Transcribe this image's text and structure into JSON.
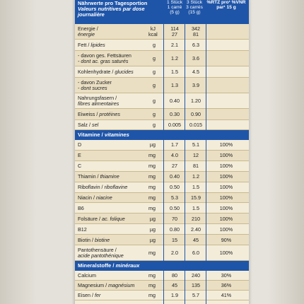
{
  "header": {
    "title_de": "Nährwerte pro Tagesportion",
    "title_fr": "Valeurs nutritives par dose journalière",
    "col1": "1 Stück 1 carré (5 g)",
    "col2": "3 Stück 3 carrés (15 g)",
    "col3": "%RTZ pro¹ %VNR par¹ 15 g"
  },
  "nutrients": [
    {
      "de": "Energie / ",
      "fr": "énergie",
      "unit": "kJ kcal",
      "v1": "114 27",
      "v2": "342 81",
      "v3": ""
    },
    {
      "de": "Fett / ",
      "fr": "lipides",
      "unit": "g",
      "v1": "2.1",
      "v2": "6.3",
      "v3": ""
    },
    {
      "de": "- davon ges. Fettsäuren",
      "fr": "- dont ac. gras saturés",
      "unit": "g",
      "v1": "1.2",
      "v2": "3.6",
      "v3": ""
    },
    {
      "de": "Kohlenhydrate / ",
      "fr": "glucides",
      "unit": "g",
      "v1": "1.5",
      "v2": "4.5",
      "v3": ""
    },
    {
      "de": "- davon Zucker",
      "fr": "- dont sucres",
      "unit": "g",
      "v1": "1.3",
      "v2": "3.9",
      "v3": ""
    },
    {
      "de": "Nahrungsfasern / ",
      "fr": "fibres alimentaires",
      "unit": "g",
      "v1": "0.40",
      "v2": "1.20",
      "v3": ""
    },
    {
      "de": "Eiweiss / ",
      "fr": "protéines",
      "unit": "g",
      "v1": "0.30",
      "v2": "0.90",
      "v3": ""
    },
    {
      "de": "Salz / ",
      "fr": "sel",
      "unit": "g",
      "v1": "0.005",
      "v2": "0.015",
      "v3": ""
    }
  ],
  "vitamins_title": {
    "de": "Vitamine / ",
    "fr": "vitamines"
  },
  "vitamins": [
    {
      "de": "D",
      "fr": "",
      "unit": "µg",
      "v1": "1.7",
      "v2": "5.1",
      "v3": "100%"
    },
    {
      "de": "E",
      "fr": "",
      "unit": "mg",
      "v1": "4.0",
      "v2": "12",
      "v3": "100%"
    },
    {
      "de": "C",
      "fr": "",
      "unit": "mg",
      "v1": "27",
      "v2": "81",
      "v3": "100%"
    },
    {
      "de": "Thiamin / ",
      "fr": "thiamine",
      "unit": "mg",
      "v1": "0.40",
      "v2": "1.2",
      "v3": "100%"
    },
    {
      "de": "Riboflavin / ",
      "fr": "riboflavine",
      "unit": "mg",
      "v1": "0.50",
      "v2": "1.5",
      "v3": "100%"
    },
    {
      "de": "Niacin / ",
      "fr": "niacine",
      "unit": "mg",
      "v1": "5.3",
      "v2": "15.9",
      "v3": "100%"
    },
    {
      "de": "B6",
      "fr": "",
      "unit": "mg",
      "v1": "0.50",
      "v2": "1.5",
      "v3": "100%"
    },
    {
      "de": "Folsäure / ",
      "fr": "ac. folique",
      "unit": "µg",
      "v1": "70",
      "v2": "210",
      "v3": "100%"
    },
    {
      "de": "B12",
      "fr": "",
      "unit": "µg",
      "v1": "0.80",
      "v2": "2.40",
      "v3": "100%"
    },
    {
      "de": "Biotin / ",
      "fr": "biotine",
      "unit": "µg",
      "v1": "15",
      "v2": "45",
      "v3": "90%"
    },
    {
      "de": "Pantothensäure /",
      "fr": "acide pantothénique",
      "unit": "mg",
      "v1": "2.0",
      "v2": "6.0",
      "v3": "100%"
    }
  ],
  "minerals_title": {
    "de": "Mineralstoffe / ",
    "fr": "minéraux"
  },
  "minerals": [
    {
      "de": "Calcium",
      "fr": "",
      "unit": "mg",
      "v1": "80",
      "v2": "240",
      "v3": "30%"
    },
    {
      "de": "Magnesium / ",
      "fr": "magnésium",
      "unit": "mg",
      "v1": "45",
      "v2": "135",
      "v3": "36%"
    },
    {
      "de": "Eisen / ",
      "fr": "fer",
      "unit": "mg",
      "v1": "1.9",
      "v2": "5.7",
      "v3": "41%"
    }
  ]
}
